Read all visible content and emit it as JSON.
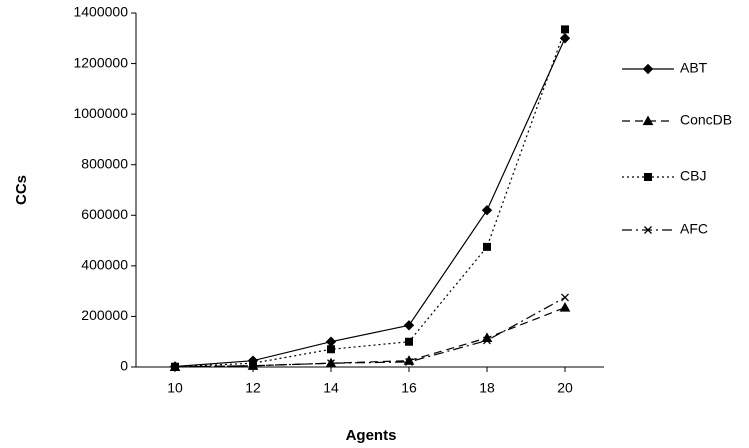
{
  "chart_data": {
    "type": "line",
    "x_label": "Agents",
    "y_label": "CCs",
    "x": [
      10,
      12,
      14,
      16,
      18,
      20
    ],
    "xlim": [
      9,
      21
    ],
    "xticks": [
      10,
      12,
      14,
      16,
      18,
      20
    ],
    "ylim": [
      0,
      1400000
    ],
    "yticks": [
      0,
      200000,
      400000,
      600000,
      800000,
      1000000,
      1200000,
      1400000
    ],
    "grid": false,
    "legend": "right",
    "series": [
      {
        "name": "ABT",
        "color": "#000000",
        "dash": "solid",
        "marker": "diamond",
        "values": [
          2000,
          25000,
          100000,
          165000,
          620000,
          1300000
        ]
      },
      {
        "name": "ConcDB",
        "color": "#000000",
        "dash": "dashed",
        "marker": "triangle",
        "values": [
          500,
          5000,
          15000,
          25000,
          115000,
          235000
        ]
      },
      {
        "name": "CBJ",
        "color": "#000000",
        "dash": "dotted",
        "marker": "square",
        "values": [
          1000,
          15000,
          70000,
          100000,
          475000,
          1335000
        ]
      },
      {
        "name": "AFC",
        "color": "#000000",
        "dash": "dashdot",
        "marker": "x",
        "values": [
          500,
          5000,
          15000,
          20000,
          105000,
          275000
        ]
      }
    ]
  }
}
